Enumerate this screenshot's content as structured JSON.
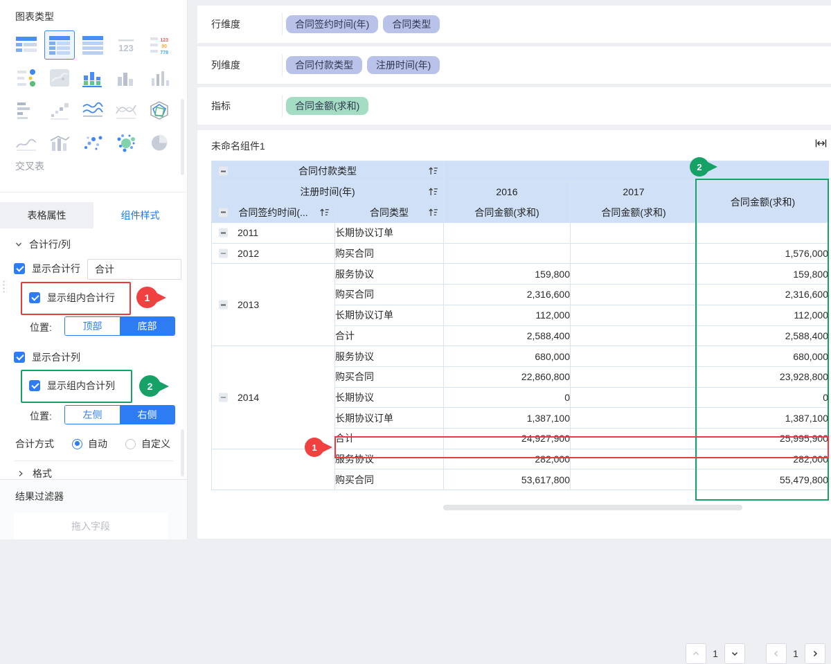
{
  "sidebar": {
    "chart_panel": {
      "title": "图表类型",
      "selected_chart_label": "交叉表"
    },
    "tabs": {
      "left": "表格属性",
      "right": "组件样式"
    },
    "totals": {
      "section_title": "合计行/列",
      "show_total_row": "显示合计行",
      "total_row_input_value": "合计",
      "show_group_total_row": "显示组内合计行",
      "row_position_label": "位置:",
      "row_position_top": "顶部",
      "row_position_bottom": "底部",
      "show_total_col": "显示合计列",
      "show_group_total_col": "显示组内合计列",
      "col_position_label": "位置:",
      "col_position_left": "左侧",
      "col_position_right": "右侧",
      "total_method_label": "合计方式",
      "method_auto": "自动",
      "method_custom": "自定义",
      "format_section": "格式"
    },
    "result_filter": {
      "title": "结果过滤器",
      "dropzone": "拖入字段"
    }
  },
  "annotations": {
    "marker1": "1",
    "marker2": "2"
  },
  "fields": {
    "rows": [
      {
        "label": "行维度",
        "pills": [
          {
            "text": "合同签约时间(年)",
            "kind": "dim"
          },
          {
            "text": "合同类型",
            "kind": "dim"
          }
        ]
      },
      {
        "label": "列维度",
        "pills": [
          {
            "text": "合同付款类型",
            "kind": "dim"
          },
          {
            "text": "注册时间(年)",
            "kind": "dim"
          }
        ]
      },
      {
        "label": "指标",
        "pills": [
          {
            "text": "合同金额(求和)",
            "kind": "measure"
          }
        ]
      }
    ]
  },
  "widget": {
    "title": "未命名组件1",
    "table": {
      "header": {
        "col_dim_top": "合同付款类型",
        "col_dim_sub": "注册时间(年)",
        "year_2016": "2016",
        "year_2017": "2017",
        "group_total_col": "合同金额(求和)",
        "row_dim": "合同签约时间(...",
        "row_dim2": "合同类型",
        "metric_2016": "合同金额(求和)",
        "metric_2017": "合同金额(求和)"
      },
      "groups": [
        {
          "year": "2011",
          "rows": [
            {
              "type": "长期协议订单",
              "v2016": "",
              "v2017": "",
              "total": "",
              "shade": true
            }
          ]
        },
        {
          "year": "2012",
          "rows": [
            {
              "type": "购买合同",
              "v2016": "",
              "v2017": "",
              "total": "1,576,000",
              "shade": false
            }
          ]
        },
        {
          "year": "2013",
          "rows": [
            {
              "type": "服务协议",
              "v2016": "159,800",
              "v2017": "",
              "total": "159,800",
              "shade": true
            },
            {
              "type": "购买合同",
              "v2016": "2,316,600",
              "v2017": "",
              "total": "2,316,600",
              "shade": false
            },
            {
              "type": "长期协议订单",
              "v2016": "112,000",
              "v2017": "",
              "total": "112,000",
              "shade": true
            },
            {
              "type": "合计",
              "v2016": "2,588,400",
              "v2017": "",
              "total": "2,588,400",
              "is_total": true
            }
          ]
        },
        {
          "year": "2014",
          "rows": [
            {
              "type": "服务协议",
              "v2016": "680,000",
              "v2017": "",
              "total": "680,000",
              "shade": false
            },
            {
              "type": "购买合同",
              "v2016": "22,860,800",
              "v2017": "",
              "total": "23,928,800",
              "shade": true
            },
            {
              "type": "长期协议",
              "v2016": "0",
              "v2017": "",
              "total": "0",
              "shade": false
            },
            {
              "type": "长期协议订单",
              "v2016": "1,387,100",
              "v2017": "",
              "total": "1,387,100",
              "shade": true
            },
            {
              "type": "合计",
              "v2016": "24,927,900",
              "v2017": "",
              "total": "25,995,900",
              "is_total": true
            }
          ]
        },
        {
          "year": "",
          "rows": [
            {
              "type": "服务协议",
              "v2016": "282,000",
              "v2017": "",
              "total": "282,000",
              "shade": true
            },
            {
              "type": "购买合同",
              "v2016": "53,617,800",
              "v2017": "",
              "total": "55,479,800",
              "shade": false
            }
          ]
        }
      ]
    },
    "pagination": {
      "v_page": "1",
      "h_page": "1"
    }
  }
}
